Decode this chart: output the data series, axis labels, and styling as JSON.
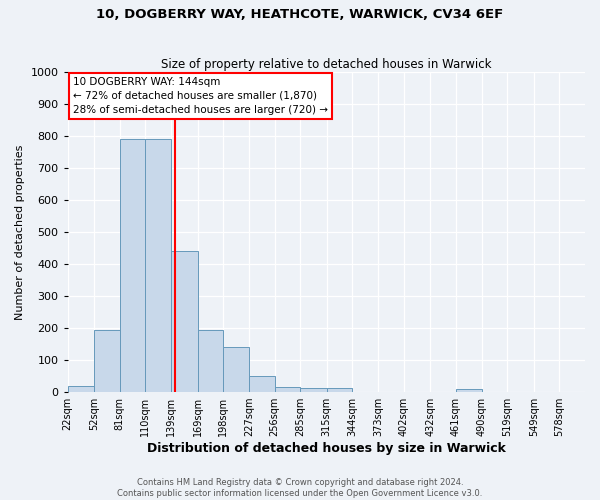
{
  "title1": "10, DOGBERRY WAY, HEATHCOTE, WARWICK, CV34 6EF",
  "title2": "Size of property relative to detached houses in Warwick",
  "xlabel": "Distribution of detached houses by size in Warwick",
  "ylabel": "Number of detached properties",
  "bin_edges": [
    22,
    52,
    81,
    110,
    139,
    169,
    198,
    227,
    256,
    285,
    315,
    344,
    373,
    402,
    432,
    461,
    490,
    519,
    549,
    578,
    607
  ],
  "bar_heights": [
    18,
    195,
    790,
    790,
    440,
    195,
    140,
    50,
    15,
    12,
    12,
    0,
    0,
    0,
    0,
    10,
    0,
    0,
    0,
    0
  ],
  "bar_color": "#c8d8ea",
  "bar_edgecolor": "#6699bb",
  "red_line_x": 144,
  "ylim": [
    0,
    1000
  ],
  "yticks": [
    0,
    100,
    200,
    300,
    400,
    500,
    600,
    700,
    800,
    900,
    1000
  ],
  "annotation_text": "10 DOGBERRY WAY: 144sqm\n← 72% of detached houses are smaller (1,870)\n28% of semi-detached houses are larger (720) →",
  "annotation_box_color": "white",
  "annotation_box_edgecolor": "red",
  "footer_text1": "Contains HM Land Registry data © Crown copyright and database right 2024.",
  "footer_text2": "Contains public sector information licensed under the Open Government Licence v3.0.",
  "background_color": "#eef2f7",
  "grid_color": "white"
}
